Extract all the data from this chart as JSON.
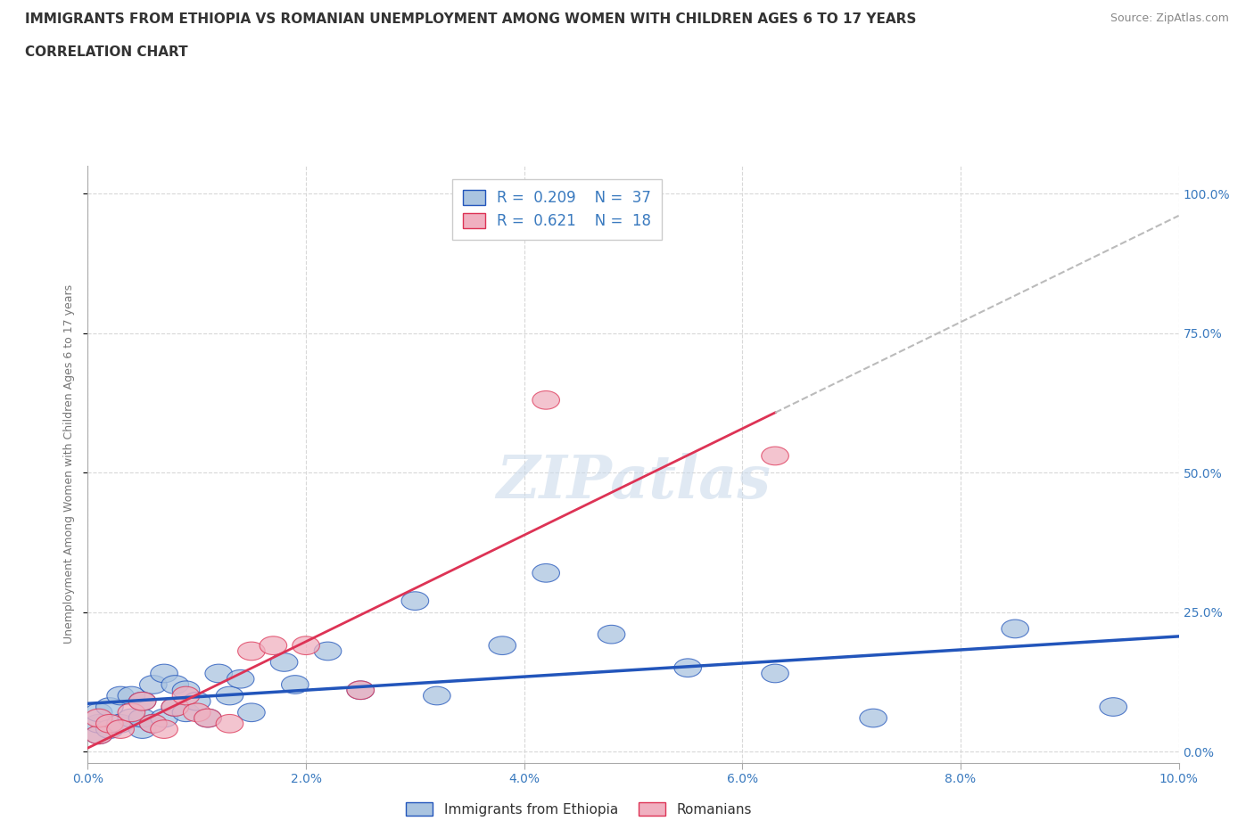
{
  "title_line1": "IMMIGRANTS FROM ETHIOPIA VS ROMANIAN UNEMPLOYMENT AMONG WOMEN WITH CHILDREN AGES 6 TO 17 YEARS",
  "title_line2": "CORRELATION CHART",
  "source_text": "Source: ZipAtlas.com",
  "ylabel": "Unemployment Among Women with Children Ages 6 to 17 years",
  "xlim": [
    0.0,
    0.1
  ],
  "ylim": [
    -0.02,
    1.05
  ],
  "xtick_labels": [
    "0.0%",
    "",
    "2.0%",
    "",
    "4.0%",
    "",
    "6.0%",
    "",
    "8.0%",
    "",
    "10.0%"
  ],
  "xtick_values": [
    0.0,
    0.01,
    0.02,
    0.03,
    0.04,
    0.05,
    0.06,
    0.07,
    0.08,
    0.09,
    0.1
  ],
  "xtick_display_labels": [
    "0.0%",
    "2.0%",
    "4.0%",
    "6.0%",
    "8.0%",
    "10.0%"
  ],
  "xtick_display_values": [
    0.0,
    0.02,
    0.04,
    0.06,
    0.08,
    0.1
  ],
  "ytick_labels": [
    "0.0%",
    "25.0%",
    "50.0%",
    "75.0%",
    "100.0%"
  ],
  "ytick_values": [
    0.0,
    0.25,
    0.5,
    0.75,
    1.0
  ],
  "background_color": "#ffffff",
  "grid_color": "#d8d8d8",
  "watermark": "ZIPatlas",
  "ethiopia_color": "#aac4e0",
  "romanian_color": "#f0b0c0",
  "ethiopia_line_color": "#2255bb",
  "romanian_line_color": "#dd3355",
  "diagonal_color": "#bbbbbb",
  "ethiopia_x": [
    0.001,
    0.001,
    0.001,
    0.002,
    0.002,
    0.003,
    0.003,
    0.004,
    0.004,
    0.005,
    0.005,
    0.005,
    0.006,
    0.006,
    0.007,
    0.007,
    0.008,
    0.008,
    0.009,
    0.009,
    0.01,
    0.011,
    0.012,
    0.013,
    0.014,
    0.015,
    0.018,
    0.019,
    0.022,
    0.025,
    0.03,
    0.032,
    0.038,
    0.042,
    0.048,
    0.055,
    0.063,
    0.072,
    0.085,
    0.094
  ],
  "ethiopia_y": [
    0.03,
    0.05,
    0.07,
    0.04,
    0.08,
    0.05,
    0.1,
    0.06,
    0.1,
    0.04,
    0.06,
    0.09,
    0.05,
    0.12,
    0.06,
    0.14,
    0.08,
    0.12,
    0.07,
    0.11,
    0.09,
    0.06,
    0.14,
    0.1,
    0.13,
    0.07,
    0.16,
    0.12,
    0.18,
    0.11,
    0.27,
    0.1,
    0.19,
    0.32,
    0.21,
    0.15,
    0.14,
    0.06,
    0.22,
    0.08
  ],
  "romanian_x": [
    0.001,
    0.001,
    0.002,
    0.003,
    0.004,
    0.005,
    0.006,
    0.007,
    0.008,
    0.009,
    0.01,
    0.011,
    0.013,
    0.015,
    0.017,
    0.02,
    0.025,
    0.042,
    0.063
  ],
  "romanian_y": [
    0.03,
    0.06,
    0.05,
    0.04,
    0.07,
    0.09,
    0.05,
    0.04,
    0.08,
    0.1,
    0.07,
    0.06,
    0.05,
    0.18,
    0.19,
    0.19,
    0.11,
    0.63,
    0.53
  ],
  "eth_reg_a": 0.04,
  "eth_reg_b": 1.65,
  "rom_reg_a": -0.025,
  "rom_reg_b": 11.5
}
